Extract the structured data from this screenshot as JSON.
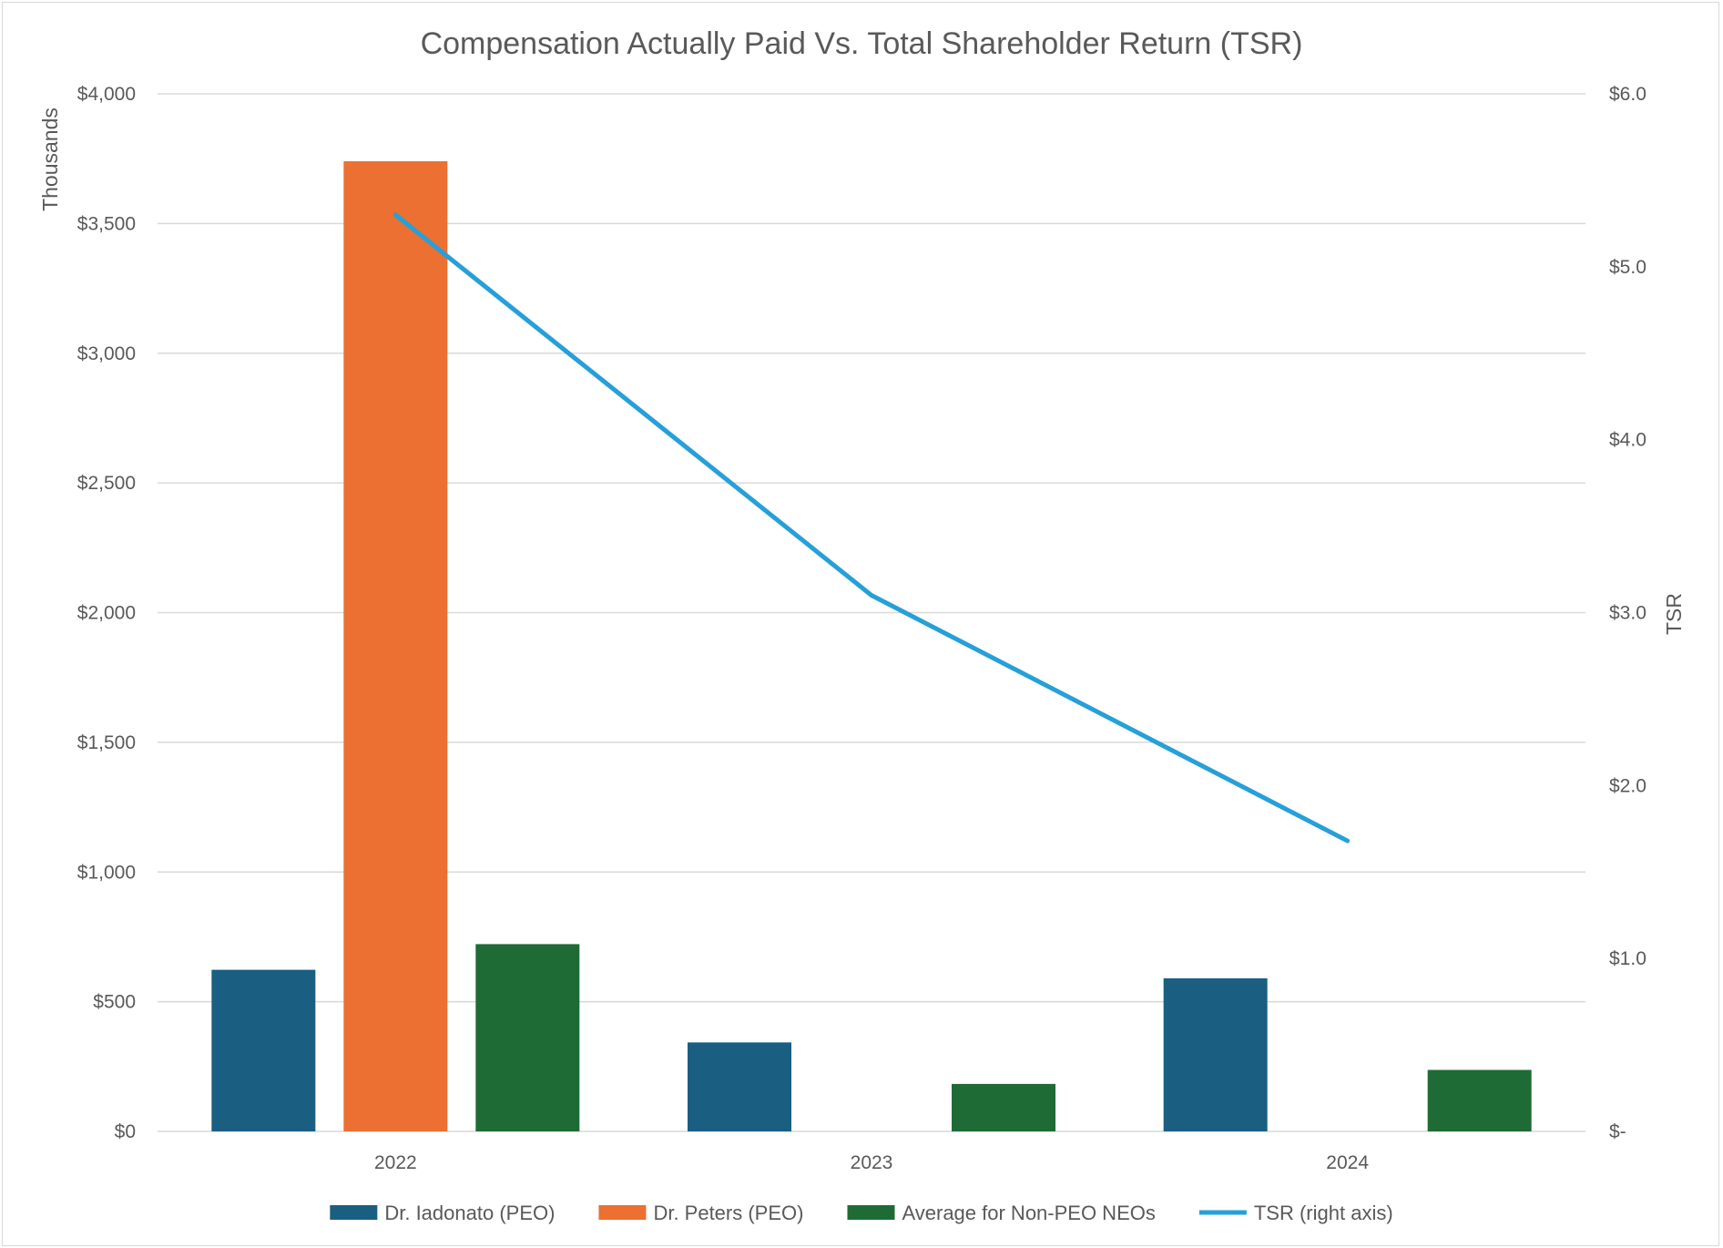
{
  "chart_data": {
    "type": "bar",
    "title": "Compensation Actually Paid Vs. Total Shareholder Return (TSR)",
    "categories": [
      "2022",
      "2023",
      "2024"
    ],
    "series": [
      {
        "name": "Dr. Iadonato (PEO)",
        "color": "#1a5e82",
        "values": [
          623,
          343,
          590
        ]
      },
      {
        "name": "Dr. Peters (PEO)",
        "color": "#eb7031",
        "values": [
          3740,
          0,
          0
        ]
      },
      {
        "name": "Average for Non-PEO NEOs",
        "color": "#1e6b36",
        "values": [
          722,
          183,
          237
        ]
      }
    ],
    "line_series": {
      "name": "TSR (right axis)",
      "color": "#26a0d8",
      "values": [
        5.3,
        3.1,
        1.68
      ],
      "axis": "right"
    },
    "y_left": {
      "label": "Thousands",
      "ylim": [
        0,
        4000
      ],
      "ticks": [
        0,
        500,
        1000,
        1500,
        2000,
        2500,
        3000,
        3500,
        4000
      ],
      "tick_labels": [
        "$0",
        "$500",
        "$1,000",
        "$1,500",
        "$2,000",
        "$2,500",
        "$3,000",
        "$3,500",
        "$4,000"
      ]
    },
    "y_right": {
      "label": "TSR",
      "ylim": [
        0,
        6
      ],
      "ticks": [
        0,
        1,
        2,
        3,
        4,
        5,
        6
      ],
      "tick_labels": [
        "$-",
        "$1.0",
        "$2.0",
        "$3.0",
        "$4.0",
        "$5.0",
        "$6.0"
      ]
    },
    "gridlines": true,
    "legend_position": "bottom",
    "grid_color": "#d9d9d9"
  }
}
